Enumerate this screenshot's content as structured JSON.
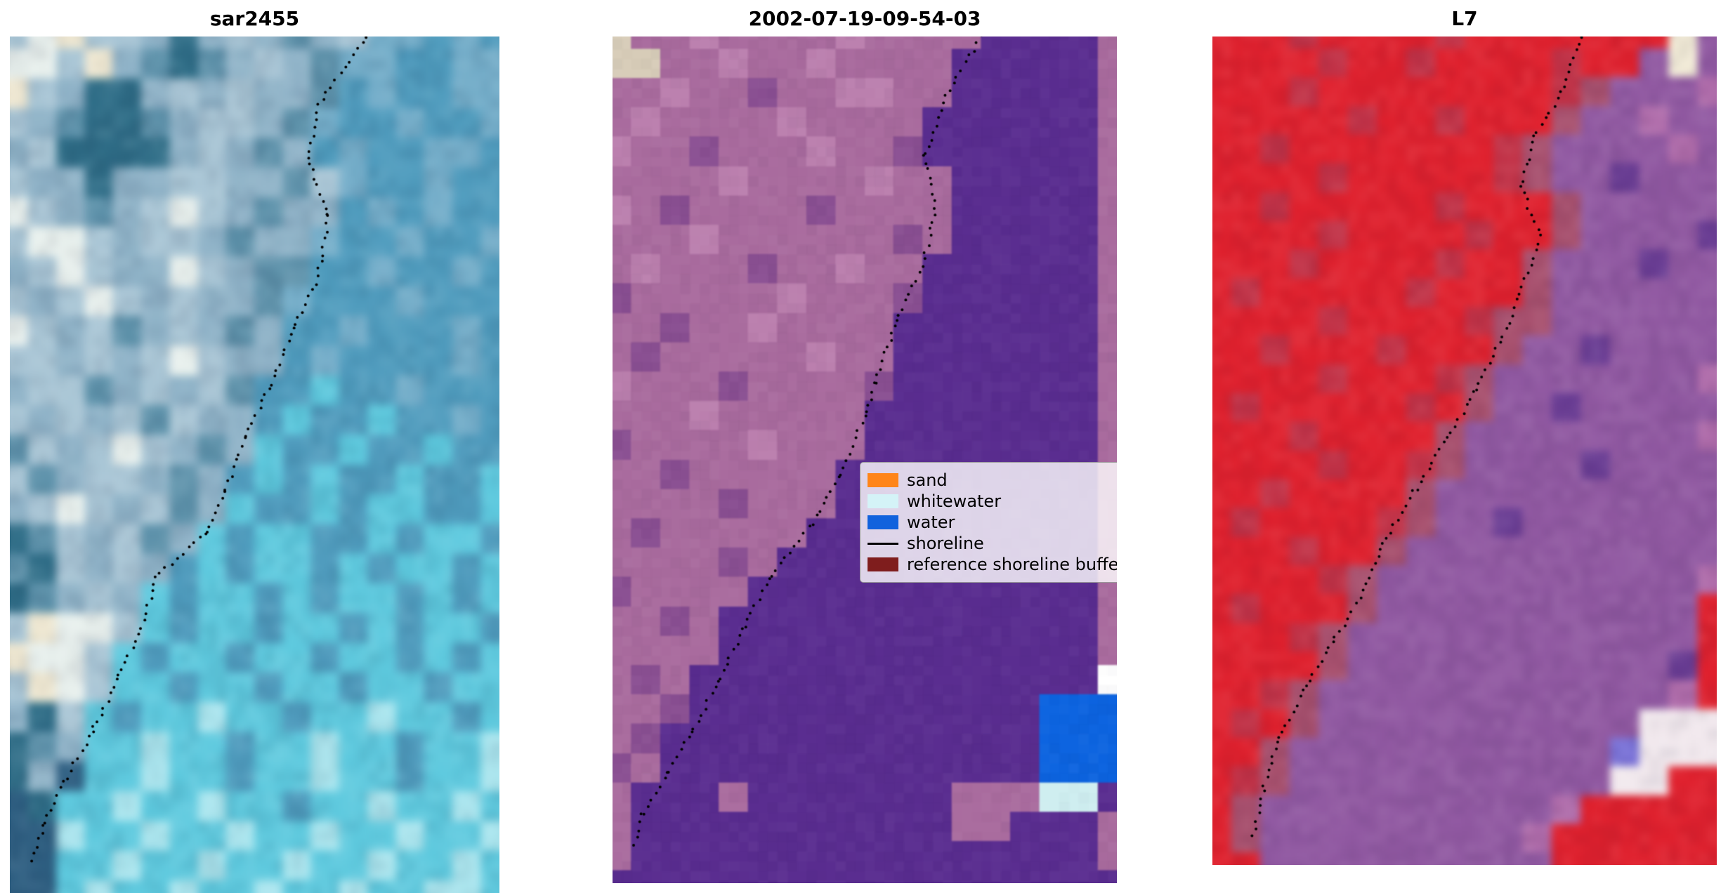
{
  "figure": {
    "background": "#ffffff",
    "panels": [
      {
        "id": "sar",
        "title": "sar2455",
        "blur": 6,
        "noise": 0.16,
        "palette": {
          "a": "#a9c6d6",
          "b": "#8fb3c8",
          "c": "#5d92ab",
          "d": "#2f6e88",
          "e": "#e9f1ee",
          "f": "#efe8d2",
          "g": "#74aeca",
          "h": "#4f9cbe",
          "i": "#5ecadf",
          "j": "#2e5f82",
          "k": "#abe6ef"
        },
        "grid": [
          "aefaabdbabcbagghgh",
          "eeafbcdcbabcgghhgg",
          "fabddbababbchghhgg",
          "abcddcbaabcghhghhg",
          "baddddbabcbhghhggh",
          "abbdbbaabbcaghhghh",
          "eabcbaeabcbbhghghh",
          "aeeabaabcbbghhghhg",
          "baeabbeabcchhghhgh",
          "abaeababbcghhhghhh",
          "eabacbabcbhhghhhgh",
          "aababaeabbhghhhhgh",
          "baacbabachhihhghhh",
          "ababacabbhihhihhgh",
          "cabaeabcbihhihhihh",
          "acbaabcbhihihhihhi",
          "baeabacbihhihiihhi",
          "dcabacbihiihhihiih",
          "cdababhihiihihiihi",
          "dcbabihiihihiihihi",
          "afeeaihiihiihihiih",
          "feeaihiihiihiihihi",
          "afeaiihiihiihiihii",
          "bdaihiikiihiikiihi",
          "dcbiikiihiikiihiik",
          "dbjiikiihiikiihiik",
          "jdiikiikiihiikiiki",
          "jjkiikiikiikiikiik",
          "jjiikiikiikiikiiki",
          "jjikiikiikiikiikki"
        ],
        "shoreline": [
          [
            0.73,
            0.0
          ],
          [
            0.63,
            0.08
          ],
          [
            0.61,
            0.14
          ],
          [
            0.65,
            0.21
          ],
          [
            0.63,
            0.28
          ],
          [
            0.58,
            0.34
          ],
          [
            0.53,
            0.41
          ],
          [
            0.48,
            0.47
          ],
          [
            0.44,
            0.53
          ],
          [
            0.4,
            0.58
          ],
          [
            0.3,
            0.63
          ],
          [
            0.27,
            0.69
          ],
          [
            0.22,
            0.75
          ],
          [
            0.17,
            0.81
          ],
          [
            0.11,
            0.87
          ],
          [
            0.07,
            0.92
          ],
          [
            0.04,
            0.97
          ]
        ]
      },
      {
        "id": "classif",
        "title": "2002-07-19-09-54-03",
        "blur": 1,
        "noise": 0.06,
        "palette": {
          "p": "#5a2d90",
          "m": "#a96b9e",
          "n": "#bb7fae",
          "d": "#8a4f92",
          "b": "#0d64e0",
          "c": "#cfeef0",
          "w": "#ffffff",
          "e": "#d8cdb9"
        },
        "grid": [
          "emmnmmmmnmmmmppppm",
          "eemmnmmnmmmmpppppm",
          "mmnmmdmmnnmmpppppm",
          "mnmmmmnmmmmppppppm",
          "nmmdmmmnmmdppppppm",
          "mmmmnmmmmnmmpppppm",
          "nmdmmmmdmmmmpppppm",
          "mmmnmmmmmmdmpppppm",
          "mnmmmdmmnmmppppppm",
          "dmmmmmnmmmdppppppm",
          "mmdmmnmmmmpppppppm",
          "mdmmmmmnmmpppppppm",
          "nmmmdmmmmdpppppppm",
          "mmmnmmmmmppppppppm",
          "dmmmmnmmmppppppppm",
          "mmdmmmmmpppppppppm",
          "mmmmdmmmpppppppppm",
          "mdmmmmmppppppppppm",
          "mmmmdmpppppppppppm",
          "dmmmmppppppppppppm",
          "mmdmpppppppppppppm",
          "mmmmpppppppppppppm",
          "mdmppppppppppppppw",
          "mmdppppppppppppbbb",
          "mdpppppppppppppbbb",
          "dmpppppppppppppbbb",
          "mpppmpppppppmmmccp",
          "mpppppppppppmmpppm",
          "mppppppppppppppppm",
          "pppppppppppppppppp"
        ],
        "shoreline": [
          [
            0.73,
            0.0
          ],
          [
            0.66,
            0.07
          ],
          [
            0.62,
            0.14
          ],
          [
            0.64,
            0.21
          ],
          [
            0.61,
            0.28
          ],
          [
            0.56,
            0.34
          ],
          [
            0.52,
            0.41
          ],
          [
            0.5,
            0.45
          ],
          [
            0.45,
            0.52
          ],
          [
            0.39,
            0.58
          ],
          [
            0.31,
            0.64
          ],
          [
            0.26,
            0.7
          ],
          [
            0.21,
            0.76
          ],
          [
            0.16,
            0.82
          ],
          [
            0.11,
            0.87
          ],
          [
            0.06,
            0.92
          ],
          [
            0.04,
            0.96
          ]
        ]
      },
      {
        "id": "l7",
        "title": "L7",
        "blur": 5,
        "noise": 0.12,
        "palette": {
          "r": "#e0212e",
          "s": "#c23247",
          "t": "#a8506e",
          "p": "#9159a2",
          "q": "#6a3d94",
          "m": "#b06cab",
          "w": "#f2e9ee",
          "d": "#7a72d8",
          "e": "#f3ecd8"
        },
        "grid": [
          "rrrsrrrrsrrrrrrrep",
          "rrrrsrrsrrrrsrrpep",
          "rrrsrrrrrrrrstpppm",
          "rrrrrsrrsrrrtppmpp",
          "rrsrrrrrrrstppppmp",
          "rrrrsrrrrrstppqppp",
          "rrsrrrrrsrrrtppppp",
          "rrrrsrrrrsrrtppppq",
          "rrrsrrrrsrrtpppqpp",
          "rsrrrrrsrrrtpppppp",
          "rrrrsrrrrsttpppppp",
          "rrsrrrsrrrtppqpppp",
          "rrrrsrrrstpppppppm",
          "rsrrrrrsrtppqppppp",
          "rrrsrrrrtppppppppm",
          "rrrrsrrstppppqpppp",
          "rrsrrrrtpppppppppp",
          "rsrrrrstppqppppppp",
          "rrrsrrtppppppppppp",
          "rrrrstpppppppppppm",
          "rsrrrtpppppppppppr",
          "rrrstppppppppppppr",
          "rrrrtpppppppppppqr",
          "rrstppppppppppppmr",
          "rsrtpppppppppppwww",
          "rrtpppppppppppdwww",
          "rstpppppppppppwwrr",
          "rtppppppppppmrrrrr",
          "rtpppppppppmrrrrrr",
          "rrpppppppppprrrrrr"
        ],
        "shoreline": [
          [
            0.73,
            0.0
          ],
          [
            0.7,
            0.06
          ],
          [
            0.64,
            0.12
          ],
          [
            0.61,
            0.18
          ],
          [
            0.65,
            0.24
          ],
          [
            0.61,
            0.31
          ],
          [
            0.57,
            0.37
          ],
          [
            0.52,
            0.43
          ],
          [
            0.46,
            0.49
          ],
          [
            0.4,
            0.55
          ],
          [
            0.34,
            0.61
          ],
          [
            0.3,
            0.67
          ],
          [
            0.24,
            0.73
          ],
          [
            0.18,
            0.79
          ],
          [
            0.13,
            0.85
          ],
          [
            0.1,
            0.91
          ],
          [
            0.08,
            0.97
          ]
        ]
      }
    ],
    "legend": {
      "items": [
        {
          "label": "sand",
          "type": "patch",
          "color": "#ff8519"
        },
        {
          "label": "whitewater",
          "type": "patch",
          "color": "#d4f3f7"
        },
        {
          "label": "water",
          "type": "patch",
          "color": "#1162dd"
        },
        {
          "label": "shoreline",
          "type": "line",
          "color": "#000000"
        },
        {
          "label": "reference shoreline buffer",
          "type": "patch",
          "color": "#7f1d1d"
        }
      ]
    }
  }
}
